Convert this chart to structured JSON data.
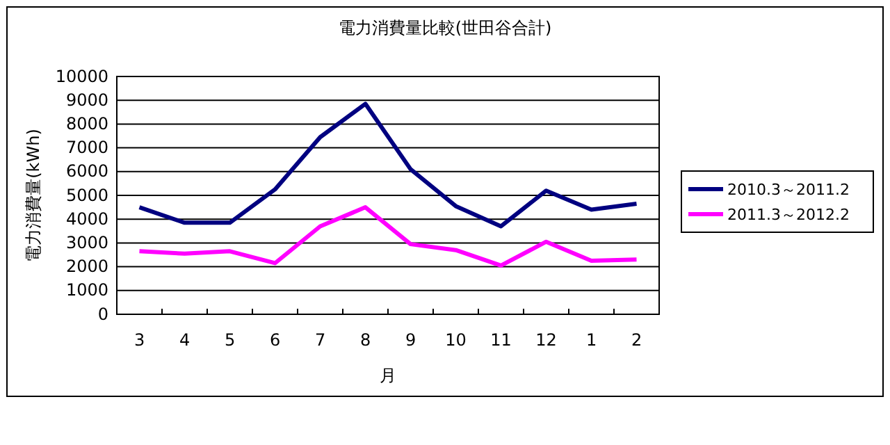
{
  "chart_data": {
    "type": "line",
    "title": "電力消費量比較(世田谷合計)",
    "xlabel": "月",
    "ylabel": "電力消費量(kWh)",
    "categories": [
      "3",
      "4",
      "5",
      "6",
      "7",
      "8",
      "9",
      "10",
      "11",
      "12",
      "1",
      "2"
    ],
    "series": [
      {
        "name": "2010.3～2011.2",
        "color": "#000080",
        "values": [
          4500,
          3850,
          3850,
          5250,
          7450,
          8850,
          6100,
          4550,
          3700,
          5200,
          4400,
          4650
        ]
      },
      {
        "name": "2011.3～2012.2",
        "color": "#ff00ff",
        "values": [
          2650,
          2550,
          2650,
          2150,
          3700,
          4500,
          2950,
          2700,
          2050,
          3050,
          2250,
          2300
        ]
      }
    ],
    "ylim": [
      0,
      10000
    ],
    "yticks": [
      0,
      1000,
      2000,
      3000,
      4000,
      5000,
      6000,
      7000,
      8000,
      9000,
      10000
    ],
    "grid": "y",
    "legend": "right",
    "marker": "none",
    "line_style": "solid"
  }
}
